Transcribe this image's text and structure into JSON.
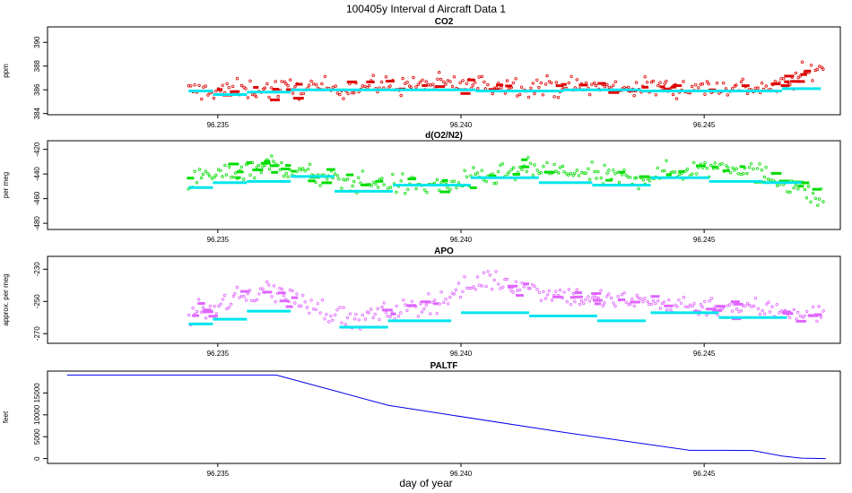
{
  "figure": {
    "title": "100405y   Interval d Aircraft Data 1",
    "xlabel": "day of year"
  },
  "colors": {
    "co2": "#dd0000",
    "o2n2": "#00dd00",
    "apo": "#e066ff",
    "mean": "#00e5ee",
    "paltf": "#0000ee",
    "axis": "#000000"
  },
  "chart_data": [
    {
      "type": "scatter",
      "title": "CO2",
      "ylabel": "ppm",
      "xlim": [
        96.2315,
        96.2478
      ],
      "ylim": [
        383.9,
        391.3
      ],
      "yticks": [
        384,
        386,
        388,
        390
      ],
      "xticks": [
        96.235,
        96.24,
        96.245
      ],
      "ytick_labels": [
        "384",
        "386",
        "388",
        "390"
      ],
      "xtick_labels": [
        "96.235",
        "96.240",
        "96.245"
      ],
      "base_level": 386.0,
      "noise": 0.9,
      "drift": [
        [
          96.2345,
          385.9
        ],
        [
          96.2375,
          386.2
        ],
        [
          96.2395,
          386.5
        ],
        [
          96.243,
          386.2
        ],
        [
          96.2465,
          386.2
        ],
        [
          96.2475,
          388.2
        ]
      ],
      "blocks": [
        {
          "x0": 96.2344,
          "x1": 96.2349,
          "y": 385.9
        },
        {
          "x0": 96.2349,
          "x1": 96.2356,
          "y": 385.6
        },
        {
          "x0": 96.2356,
          "x1": 96.2365,
          "y": 385.8
        },
        {
          "x0": 96.2365,
          "x1": 96.2383,
          "y": 386.0
        },
        {
          "x0": 96.2383,
          "x1": 96.2403,
          "y": 386.0
        },
        {
          "x0": 96.2403,
          "x1": 96.2421,
          "y": 385.9
        },
        {
          "x0": 96.2421,
          "x1": 96.2437,
          "y": 386.0
        },
        {
          "x0": 96.2437,
          "x1": 96.2452,
          "y": 385.9
        },
        {
          "x0": 96.2452,
          "x1": 96.2466,
          "y": 385.9
        },
        {
          "x0": 96.2466,
          "x1": 96.2474,
          "y": 386.1
        }
      ]
    },
    {
      "type": "scatter",
      "title": "d(O2/N2)",
      "ylabel": "per meg",
      "xlim": [
        96.2315,
        96.2478
      ],
      "ylim": [
        -485,
        -413
      ],
      "yticks": [
        -480,
        -460,
        -440,
        -420
      ],
      "xticks": [
        96.235,
        96.24,
        96.245
      ],
      "ytick_labels": [
        "-480",
        "-460",
        "-440",
        "-420"
      ],
      "xtick_labels": [
        "96.235",
        "96.240",
        "96.245"
      ],
      "base_level": -445,
      "noise": 9,
      "drift": [
        [
          96.2345,
          -445
        ],
        [
          96.236,
          -432
        ],
        [
          96.2375,
          -446
        ],
        [
          96.2395,
          -450
        ],
        [
          96.2415,
          -436
        ],
        [
          96.2435,
          -444
        ],
        [
          96.2455,
          -432
        ],
        [
          96.2468,
          -448
        ],
        [
          96.2478,
          -470
        ]
      ],
      "blocks": [
        {
          "x0": 96.2344,
          "x1": 96.2349,
          "y": -451
        },
        {
          "x0": 96.2349,
          "x1": 96.2356,
          "y": -447
        },
        {
          "x0": 96.2356,
          "x1": 96.2365,
          "y": -446
        },
        {
          "x0": 96.2365,
          "x1": 96.2374,
          "y": -442
        },
        {
          "x0": 96.2374,
          "x1": 96.2386,
          "y": -454
        },
        {
          "x0": 96.2386,
          "x1": 96.2402,
          "y": -449
        },
        {
          "x0": 96.2402,
          "x1": 96.2416,
          "y": -443
        },
        {
          "x0": 96.2416,
          "x1": 96.2427,
          "y": -447
        },
        {
          "x0": 96.2427,
          "x1": 96.2439,
          "y": -449
        },
        {
          "x0": 96.2439,
          "x1": 96.2451,
          "y": -443
        },
        {
          "x0": 96.2451,
          "x1": 96.2462,
          "y": -446
        },
        {
          "x0": 96.2462,
          "x1": 96.247,
          "y": -447
        }
      ]
    },
    {
      "type": "scatter",
      "title": "APO",
      "ylabel": "approx. per meg",
      "xlim": [
        96.2315,
        96.2478
      ],
      "ylim": [
        -276,
        -222
      ],
      "yticks": [
        -270,
        -250,
        -230
      ],
      "xticks": [
        96.235,
        96.24,
        96.245
      ],
      "ytick_labels": [
        "-270",
        "-250",
        "-230"
      ],
      "xtick_labels": [
        "96.235",
        "96.240",
        "96.245"
      ],
      "base_level": -255,
      "noise": 7,
      "drift": [
        [
          96.2345,
          -258
        ],
        [
          96.236,
          -242
        ],
        [
          96.2378,
          -262
        ],
        [
          96.2395,
          -250
        ],
        [
          96.2405,
          -236
        ],
        [
          96.2425,
          -248
        ],
        [
          96.2445,
          -252
        ],
        [
          96.2465,
          -255
        ],
        [
          96.2478,
          -260
        ]
      ],
      "blocks": [
        {
          "x0": 96.2344,
          "x1": 96.2349,
          "y": -264
        },
        {
          "x0": 96.2349,
          "x1": 96.2356,
          "y": -261
        },
        {
          "x0": 96.2356,
          "x1": 96.2365,
          "y": -256
        },
        {
          "x0": 96.2375,
          "x1": 96.2385,
          "y": -266
        },
        {
          "x0": 96.2385,
          "x1": 96.2398,
          "y": -262
        },
        {
          "x0": 96.24,
          "x1": 96.2414,
          "y": -257
        },
        {
          "x0": 96.2414,
          "x1": 96.2428,
          "y": -259
        },
        {
          "x0": 96.2428,
          "x1": 96.2438,
          "y": -262
        },
        {
          "x0": 96.2439,
          "x1": 96.2453,
          "y": -257
        },
        {
          "x0": 96.2453,
          "x1": 96.2467,
          "y": -260
        }
      ]
    },
    {
      "type": "line",
      "title": "PALTF",
      "ylabel": "feet",
      "xlim": [
        96.2315,
        96.2478
      ],
      "ylim": [
        -1100,
        20000
      ],
      "yticks": [
        0,
        5000,
        10000,
        15000
      ],
      "xticks": [
        96.235,
        96.24,
        96.245
      ],
      "ytick_labels": [
        "0",
        "5000",
        "10000",
        "15000"
      ],
      "xtick_labels": [
        "96.235",
        "96.240",
        "96.245"
      ],
      "x": [
        96.2319,
        96.2362,
        96.2375,
        96.2385,
        96.2396,
        96.242,
        96.2447,
        96.2454,
        96.246,
        96.2466,
        96.247,
        96.2475
      ],
      "y": [
        19100,
        19100,
        15200,
        12200,
        10300,
        6200,
        1900,
        1900,
        1850,
        600,
        100,
        0
      ]
    }
  ]
}
